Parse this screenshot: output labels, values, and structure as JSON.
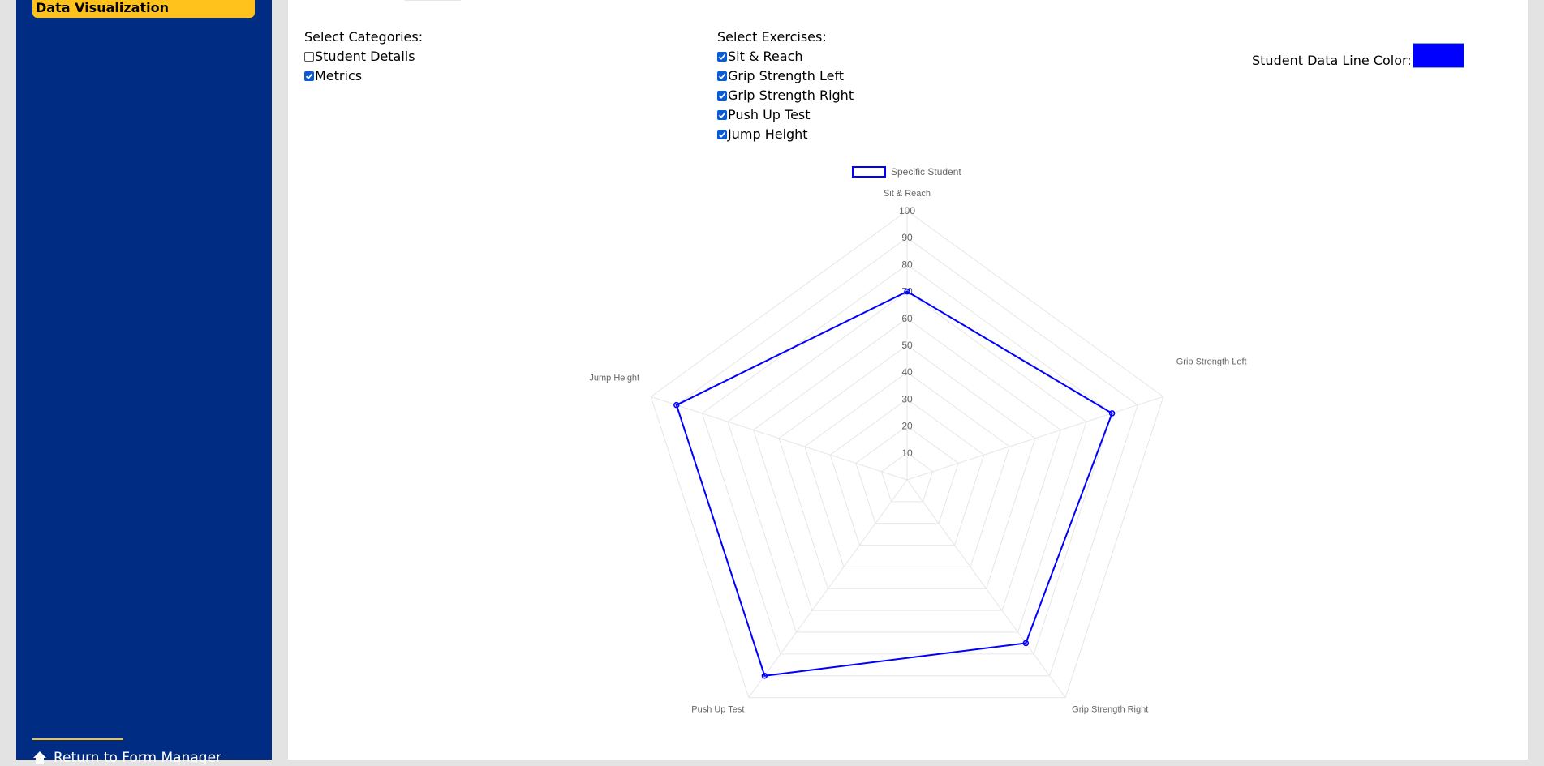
{
  "sidebar": {
    "active_item": "Data Visualization",
    "footer_link": "Return to Form Manager",
    "footer_icon": "home-icon"
  },
  "categories": {
    "title": "Select Categories:",
    "items": [
      {
        "label": "Student Details",
        "checked": false
      },
      {
        "label": "Metrics",
        "checked": true
      }
    ]
  },
  "exercises": {
    "title": "Select Exercises:",
    "items": [
      {
        "label": "Sit & Reach",
        "checked": true
      },
      {
        "label": "Grip Strength Left",
        "checked": true
      },
      {
        "label": "Grip Strength Right",
        "checked": true
      },
      {
        "label": "Push Up Test",
        "checked": true
      },
      {
        "label": "Jump Height",
        "checked": true
      }
    ]
  },
  "line_color": {
    "label": "Student Data Line Color:",
    "value": "#0000ff"
  },
  "colors": {
    "sidebar": "#002d83",
    "accent": "#ffc21c",
    "series": "#0000ff",
    "grid": "#e6e6e6"
  },
  "chart_data": {
    "type": "radar",
    "axes": [
      "Sit & Reach",
      "Grip Strength Left",
      "Grip Strength Right",
      "Push Up Test",
      "Jump Height"
    ],
    "ticks": [
      "10",
      "20",
      "30",
      "40",
      "50",
      "60",
      "70",
      "80",
      "90",
      "100"
    ],
    "range": [
      0,
      100
    ],
    "legend_position": "top",
    "series": [
      {
        "name": "Specific Student",
        "values": [
          70,
          80,
          75,
          90,
          90
        ]
      }
    ]
  }
}
